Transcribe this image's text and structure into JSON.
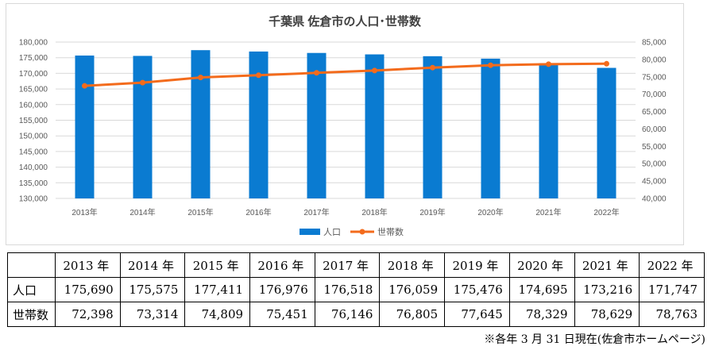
{
  "chart_data": {
    "type": "bar+line",
    "title": "千葉県 佐倉市の人口･世帯数",
    "categories": [
      "2013年",
      "2014年",
      "2015年",
      "2016年",
      "2017年",
      "2018年",
      "2019年",
      "2020年",
      "2021年",
      "2022年"
    ],
    "series": [
      {
        "name": "人口",
        "type": "bar",
        "axis": "left",
        "color": "#0a7bd1",
        "values": [
          175690,
          175575,
          177411,
          176976,
          176518,
          176059,
          175476,
          174695,
          173216,
          171747
        ]
      },
      {
        "name": "世帯数",
        "type": "line",
        "axis": "right",
        "color": "#f36b1c",
        "values": [
          72398,
          73314,
          74809,
          75451,
          76146,
          76805,
          77645,
          78329,
          78629,
          78763
        ]
      }
    ],
    "left_axis": {
      "min": 130000,
      "max": 180000,
      "step": 5000,
      "ticks": [
        "130,000",
        "135,000",
        "140,000",
        "145,000",
        "150,000",
        "155,000",
        "160,000",
        "165,000",
        "170,000",
        "175,000",
        "180,000"
      ]
    },
    "right_axis": {
      "min": 40000,
      "max": 85000,
      "step": 5000,
      "ticks": [
        "40,000",
        "45,000",
        "50,000",
        "55,000",
        "60,000",
        "65,000",
        "70,000",
        "75,000",
        "80,000",
        "85,000"
      ]
    },
    "legend": {
      "placement": "bottom",
      "entries": [
        "人口",
        "世帯数"
      ]
    },
    "grid": true
  },
  "table": {
    "header": [
      "",
      "2013 年",
      "2014 年",
      "2015 年",
      "2016 年",
      "2017 年",
      "2018 年",
      "2019 年",
      "2020 年",
      "2021 年",
      "2022 年"
    ],
    "rows": [
      {
        "label": "人口",
        "values": [
          "175,690",
          "175,575",
          "177,411",
          "176,976",
          "176,518",
          "176,059",
          "175,476",
          "174,695",
          "173,216",
          "171,747"
        ]
      },
      {
        "label": "世帯数",
        "values": [
          "72,398",
          "73,314",
          "74,809",
          "75,451",
          "76,146",
          "76,805",
          "77,645",
          "78,329",
          "78,629",
          "78,763"
        ]
      }
    ]
  },
  "note": "※各年 3 月 31 日現在(佐倉市ホームページ)",
  "colors": {
    "bar": "#0a7bd1",
    "line": "#f36b1c",
    "grid": "#d9d9d9",
    "axis_text": "#595959"
  }
}
